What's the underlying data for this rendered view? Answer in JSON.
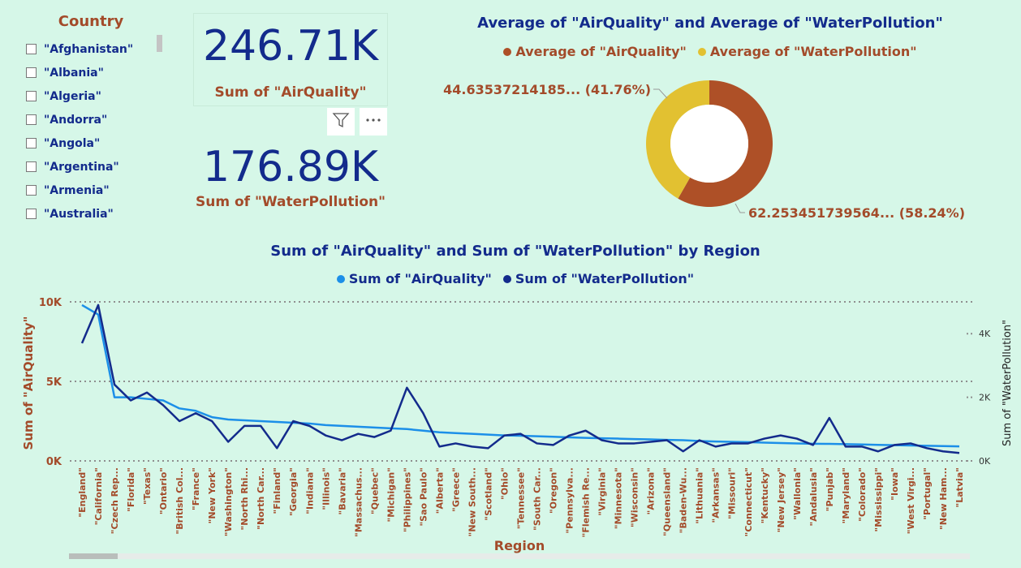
{
  "slicer": {
    "title": "Country",
    "items": [
      {
        "label": "\"Afghanistan\""
      },
      {
        "label": "\"Albania\""
      },
      {
        "label": "\"Algeria\""
      },
      {
        "label": "\"Andorra\""
      },
      {
        "label": "\"Angola\""
      },
      {
        "label": "\"Argentina\""
      },
      {
        "label": "\"Armenia\""
      },
      {
        "label": "\"Australia\""
      }
    ]
  },
  "kpis": {
    "air": {
      "value": "246.71K",
      "label": "Sum of  \"AirQuality\""
    },
    "water": {
      "value": "176.89K",
      "label": "Sum of  \"WaterPollution\""
    }
  },
  "icons": {
    "filter": "filter-icon",
    "more": "more-options-icon"
  },
  "colors": {
    "background": "#d6f7e8",
    "title": "#132b8c",
    "label": "#a34b2a",
    "donut_air": "#ae5027",
    "donut_water": "#e2c131",
    "line_air": "#1c8fe8",
    "line_water": "#132b8c"
  },
  "donut": {
    "title": "Average of \"AirQuality\" and Average of \"WaterPollution\"",
    "legend": [
      "Average of  \"AirQuality\"",
      "Average of  \"WaterPollution\""
    ],
    "label_water": "44.63537214185... (41.76%)",
    "label_air": "62.253451739564... (58.24%)"
  },
  "line": {
    "title": "Sum of \"AirQuality\" and Sum of \"WaterPollution\" by Region",
    "legend": [
      "Sum of  \"AirQuality\"",
      "Sum of  \"WaterPollution\""
    ],
    "xlabel": "Region",
    "ylabel_left": "Sum of \"AirQuality\"",
    "ylabel_right": "Sum of \"WaterPollution\""
  },
  "chart_data": [
    {
      "type": "pie",
      "title": "Average of \"AirQuality\" and Average of \"WaterPollution\"",
      "labels": [
        "Average of  \"AirQuality\"",
        "Average of  \"WaterPollution\""
      ],
      "values": [
        62.253451739564,
        44.63537214185
      ],
      "percent": [
        58.24,
        41.76
      ],
      "legend": "top"
    },
    {
      "type": "line",
      "title": "Sum of \"AirQuality\" and Sum of \"WaterPollution\" by Region",
      "xlabel": "Region",
      "ylabel": "Sum of \"AirQuality\"",
      "y2label": "Sum of \"WaterPollution\"",
      "ylim": [
        0,
        10000
      ],
      "y2lim": [
        0,
        5000
      ],
      "yticks": [
        "0K",
        "5K",
        "10K"
      ],
      "y2ticks": [
        "0K",
        "2K",
        "4K"
      ],
      "grid": true,
      "legend": "top",
      "categories": [
        "\"England\"",
        "\"California\"",
        "\"Czech Rep...",
        "\"Florida\"",
        "\"Texas\"",
        "\"Ontario\"",
        "\"British Col...",
        "\"France\"",
        "\"New York\"",
        "\"Washington\"",
        "\"North Rhi...",
        "\"North Car...",
        "\"Finland\"",
        "\"Georgia\"",
        "\"Indiana\"",
        "\"Illinois\"",
        "\"Bavaria\"",
        "\"Massachus...",
        "\"Quebec\"",
        "\"Michigan\"",
        "\"Philippines\"",
        "\"Sao Paulo\"",
        "\"Alberta\"",
        "\"Greece\"",
        "\"New South...",
        "\"Scotland\"",
        "\"Ohio\"",
        "\"Tennessee\"",
        "\"South Car...",
        "\"Oregon\"",
        "\"Pennsylva...",
        "\"Flemish Re...",
        "\"Virginia\"",
        "\"Minnesota\"",
        "\"Wisconsin\"",
        "\"Arizona\"",
        "\"Queensland\"",
        "\"Baden-Wu...",
        "\"Lithuania\"",
        "\"Arkansas\"",
        "\"Missouri\"",
        "\"Connecticut\"",
        "\"Kentucky\"",
        "\"New Jersey\"",
        "\"Wallonia\"",
        "\"Andalusia\"",
        "\"Punjab\"",
        "\"Maryland\"",
        "\"Colorado\"",
        "\"Mississippi\"",
        "\"Iowa\"",
        "\"West Virgi...",
        "\"Portugal\"",
        "\"New Ham...",
        "\"Latvia\""
      ],
      "series": [
        {
          "name": "Sum of  \"AirQuality\"",
          "axis": "left",
          "values": [
            9800,
            9200,
            4000,
            4000,
            3900,
            3800,
            3300,
            3150,
            2750,
            2600,
            2550,
            2500,
            2450,
            2400,
            2350,
            2250,
            2200,
            2150,
            2100,
            2050,
            2000,
            1900,
            1800,
            1750,
            1700,
            1650,
            1600,
            1580,
            1550,
            1520,
            1480,
            1450,
            1420,
            1400,
            1370,
            1350,
            1320,
            1300,
            1250,
            1220,
            1200,
            1180,
            1150,
            1120,
            1100,
            1080,
            1070,
            1050,
            1030,
            1010,
            990,
            970,
            950,
            930,
            910
          ]
        },
        {
          "name": "Sum of  \"WaterPollution\"",
          "axis": "right",
          "values": [
            3700,
            4900,
            2400,
            1900,
            2150,
            1750,
            1250,
            1500,
            1250,
            600,
            1100,
            1100,
            400,
            1250,
            1100,
            800,
            650,
            850,
            750,
            950,
            2300,
            1500,
            450,
            550,
            450,
            400,
            800,
            850,
            550,
            500,
            800,
            950,
            650,
            550,
            550,
            600,
            650,
            300,
            650,
            450,
            550,
            550,
            700,
            800,
            700,
            500,
            1350,
            450,
            450,
            300,
            500,
            550,
            400,
            300,
            250
          ]
        }
      ]
    }
  ]
}
